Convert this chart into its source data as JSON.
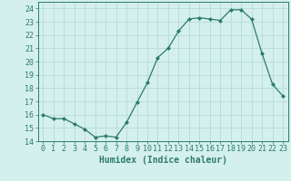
{
  "x": [
    0,
    1,
    2,
    3,
    4,
    5,
    6,
    7,
    8,
    9,
    10,
    11,
    12,
    13,
    14,
    15,
    16,
    17,
    18,
    19,
    20,
    21,
    22,
    23
  ],
  "y": [
    16.0,
    15.7,
    15.7,
    15.3,
    14.9,
    14.3,
    14.4,
    14.3,
    15.4,
    16.9,
    18.4,
    20.3,
    21.0,
    22.3,
    23.2,
    23.3,
    23.2,
    23.1,
    23.9,
    23.9,
    23.2,
    20.6,
    18.3,
    17.4
  ],
  "xlim": [
    -0.5,
    23.5
  ],
  "ylim": [
    14,
    24.5
  ],
  "yticks": [
    14,
    15,
    16,
    17,
    18,
    19,
    20,
    21,
    22,
    23,
    24
  ],
  "xticks": [
    0,
    1,
    2,
    3,
    4,
    5,
    6,
    7,
    8,
    9,
    10,
    11,
    12,
    13,
    14,
    15,
    16,
    17,
    18,
    19,
    20,
    21,
    22,
    23
  ],
  "xlabel": "Humidex (Indice chaleur)",
  "line_color": "#2d7a6e",
  "marker": "D",
  "marker_size": 2.0,
  "bg_color": "#d4f0ec",
  "grid_color": "#b0d8d0",
  "axis_color": "#2d7a6e",
  "tick_label_color": "#2d7a6e",
  "xlabel_color": "#2d7a6e",
  "xlabel_fontsize": 7,
  "tick_fontsize": 6,
  "linewidth": 0.9
}
